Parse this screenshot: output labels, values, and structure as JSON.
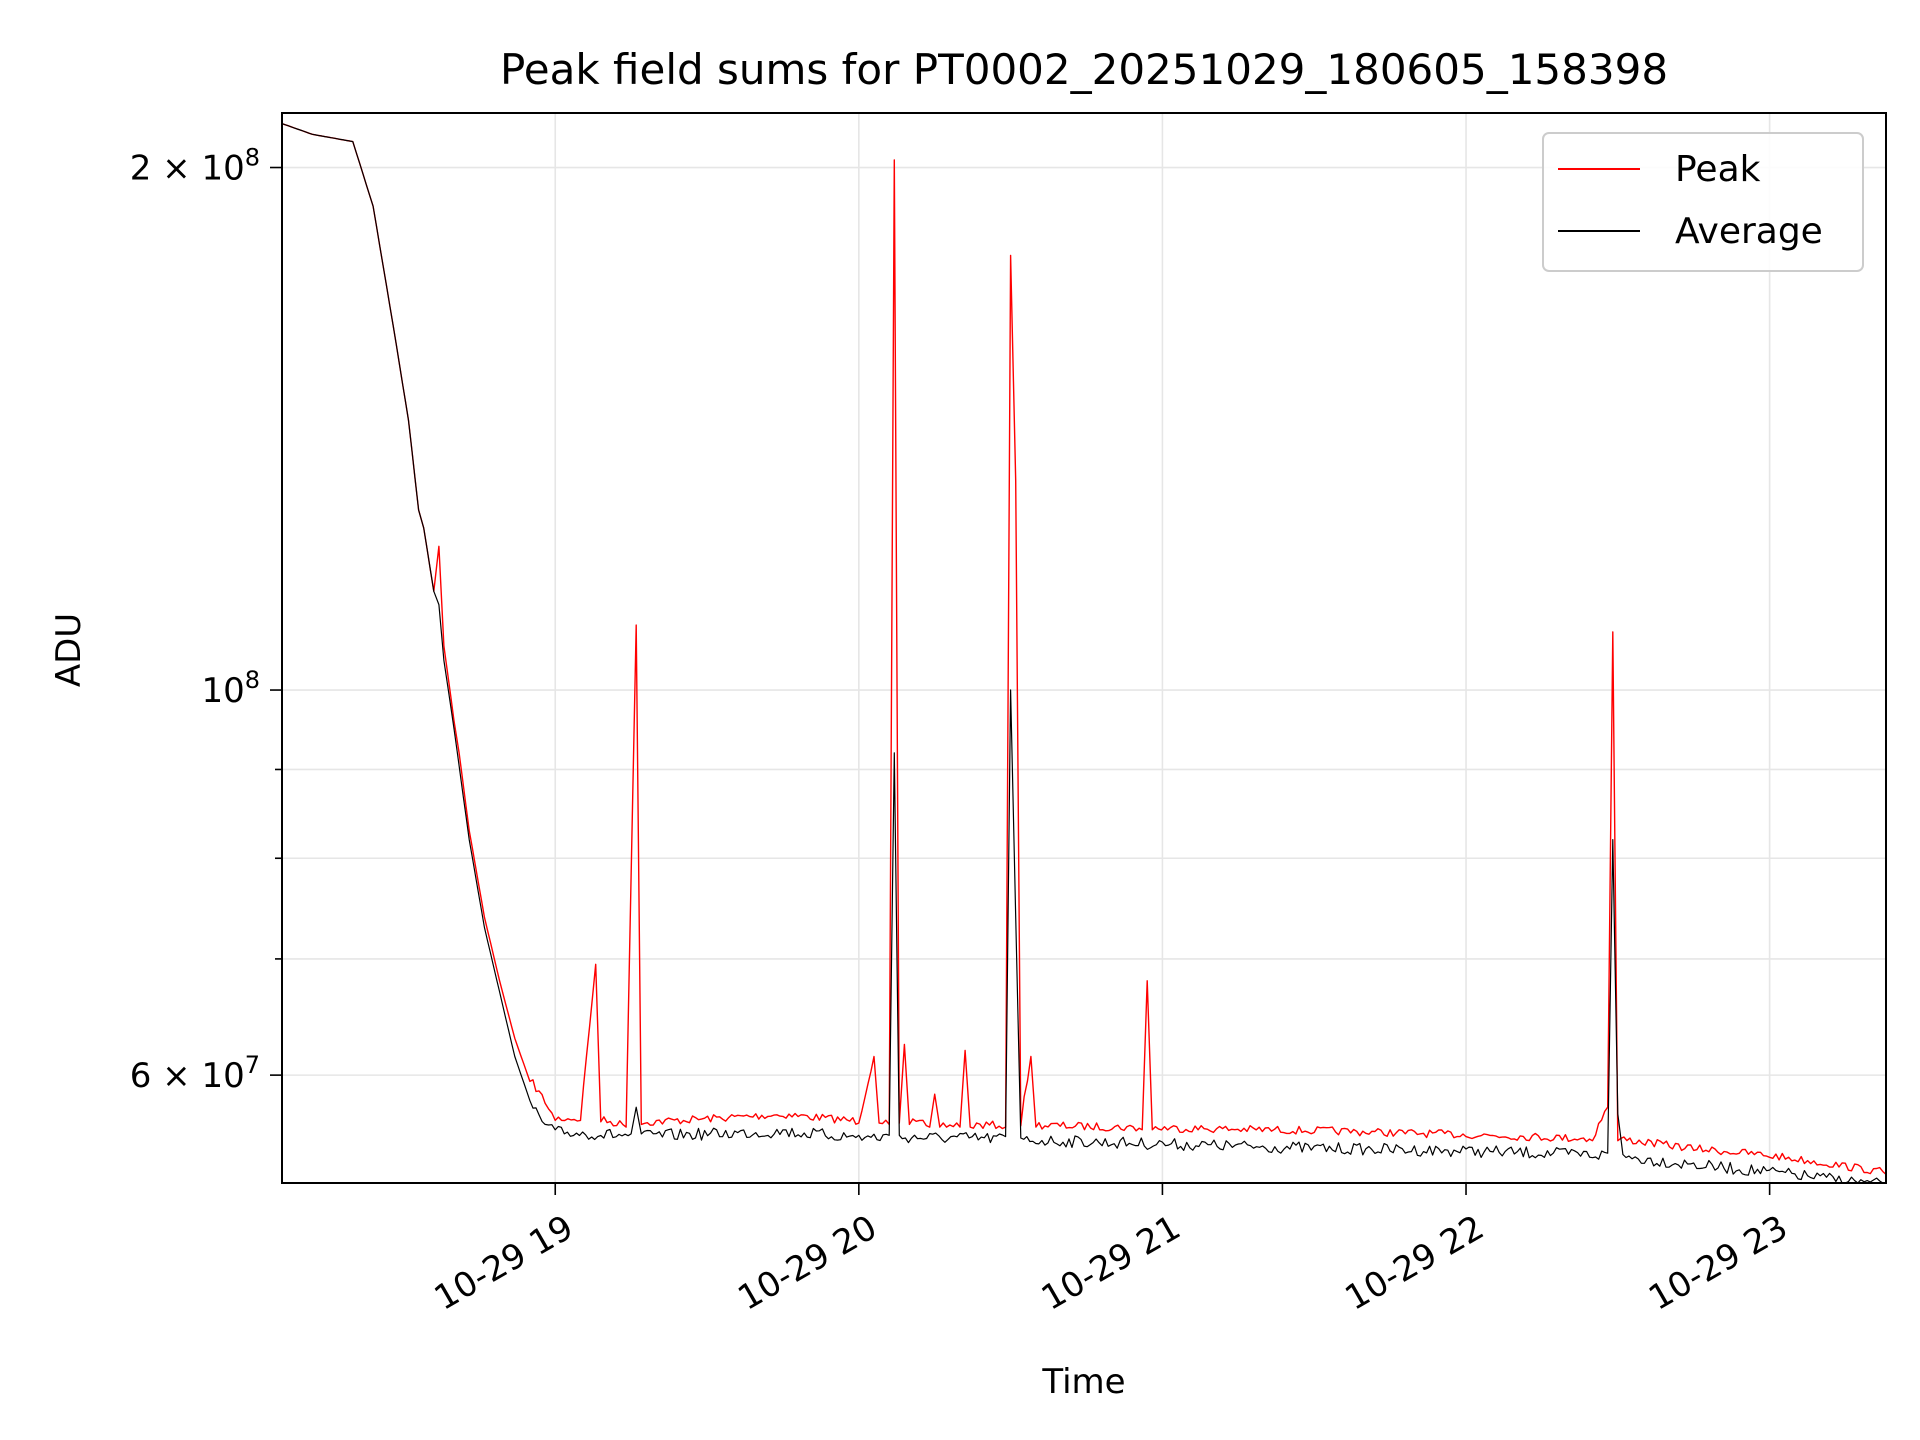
{
  "chart_data": {
    "type": "line",
    "title": "Peak field sums for PT0002_20251029_180605_158398",
    "xlabel": "Time",
    "ylabel": "ADU",
    "y_scale": "log",
    "x_range": [
      "2025-10-29 18:06",
      "2025-10-29 23:23"
    ],
    "ylim": [
      52000000,
      215000000
    ],
    "x_ticks": [
      {
        "label": "10-29 19",
        "t": "2025-10-29 19:00"
      },
      {
        "label": "10-29 20",
        "t": "2025-10-29 20:00"
      },
      {
        "label": "10-29 21",
        "t": "2025-10-29 21:00"
      },
      {
        "label": "10-29 22",
        "t": "2025-10-29 22:00"
      },
      {
        "label": "10-29 23",
        "t": "2025-10-29 23:00"
      }
    ],
    "y_ticks": [
      {
        "label_base": "2 × 10",
        "label_exp": "8",
        "value": 200000000
      },
      {
        "label_base": "10",
        "label_exp": "8",
        "value": 100000000
      },
      {
        "label_base": "6 × 10",
        "label_exp": "7",
        "value": 60000000
      }
    ],
    "y_minor_ticks": [
      70000000,
      80000000,
      90000000
    ],
    "grid": true,
    "legend": "top-right",
    "series": [
      {
        "name": "Peak",
        "color": "#ff0000",
        "points": [
          [
            "2025-10-29 18:06",
            212000000
          ],
          [
            "2025-10-29 18:12",
            209000000
          ],
          [
            "2025-10-29 18:20",
            207000000
          ],
          [
            "2025-10-29 18:24",
            190000000
          ],
          [
            "2025-10-29 18:28",
            162000000
          ],
          [
            "2025-10-29 18:31",
            143000000
          ],
          [
            "2025-10-29 18:33",
            127000000
          ],
          [
            "2025-10-29 18:34",
            124000000
          ],
          [
            "2025-10-29 18:36",
            114000000
          ],
          [
            "2025-10-29 18:37",
            121000000
          ],
          [
            "2025-10-29 18:38",
            106000000
          ],
          [
            "2025-10-29 18:40",
            96000000
          ],
          [
            "2025-10-29 18:41",
            92000000
          ],
          [
            "2025-10-29 18:43",
            83000000
          ],
          [
            "2025-10-29 18:46",
            74000000
          ],
          [
            "2025-10-29 18:49",
            68000000
          ],
          [
            "2025-10-29 18:52",
            63000000
          ],
          [
            "2025-10-29 18:55",
            59500000
          ],
          [
            "2025-10-29 18:58",
            57800000
          ],
          [
            "2025-10-29 19:00",
            56500000
          ],
          [
            "2025-10-29 19:05",
            56500000
          ],
          [
            "2025-10-29 19:08",
            69500000
          ],
          [
            "2025-10-29 19:09",
            56400000
          ],
          [
            "2025-10-29 19:14",
            56000000
          ],
          [
            "2025-10-29 19:16",
            109000000
          ],
          [
            "2025-10-29 19:17",
            56200000
          ],
          [
            "2025-10-29 19:45",
            56800000
          ],
          [
            "2025-10-29 20:00",
            56300000
          ],
          [
            "2025-10-29 20:03",
            61500000
          ],
          [
            "2025-10-29 20:04",
            56300000
          ],
          [
            "2025-10-29 20:06",
            56200000
          ],
          [
            "2025-10-29 20:07",
            202000000
          ],
          [
            "2025-10-29 20:08",
            56300000
          ],
          [
            "2025-10-29 20:09",
            62500000
          ],
          [
            "2025-10-29 20:10",
            56200000
          ],
          [
            "2025-10-29 20:14",
            56000000
          ],
          [
            "2025-10-29 20:15",
            58500000
          ],
          [
            "2025-10-29 20:16",
            56000000
          ],
          [
            "2025-10-29 20:20",
            56000000
          ],
          [
            "2025-10-29 20:21",
            62000000
          ],
          [
            "2025-10-29 20:22",
            56000000
          ],
          [
            "2025-10-29 20:29",
            56000000
          ],
          [
            "2025-10-29 20:30",
            178000000
          ],
          [
            "2025-10-29 20:31",
            132000000
          ],
          [
            "2025-10-29 20:32",
            56100000
          ],
          [
            "2025-10-29 20:34",
            61500000
          ],
          [
            "2025-10-29 20:35",
            56000000
          ],
          [
            "2025-10-29 20:56",
            55800000
          ],
          [
            "2025-10-29 20:57",
            68000000
          ],
          [
            "2025-10-29 20:58",
            55800000
          ],
          [
            "2025-10-29 21:30",
            55600000
          ],
          [
            "2025-10-29 22:00",
            55300000
          ],
          [
            "2025-10-29 22:25",
            55000000
          ],
          [
            "2025-10-29 22:28",
            57500000
          ],
          [
            "2025-10-29 22:29",
            108000000
          ],
          [
            "2025-10-29 22:30",
            55000000
          ],
          [
            "2025-10-29 22:45",
            54300000
          ],
          [
            "2025-10-29 23:00",
            53800000
          ],
          [
            "2025-10-29 23:10",
            53300000
          ],
          [
            "2025-10-29 23:23",
            52600000
          ]
        ]
      },
      {
        "name": "Average",
        "color": "#000000",
        "points": [
          [
            "2025-10-29 18:06",
            212000000
          ],
          [
            "2025-10-29 18:12",
            209000000
          ],
          [
            "2025-10-29 18:20",
            207000000
          ],
          [
            "2025-10-29 18:24",
            190000000
          ],
          [
            "2025-10-29 18:28",
            162000000
          ],
          [
            "2025-10-29 18:31",
            143000000
          ],
          [
            "2025-10-29 18:33",
            127000000
          ],
          [
            "2025-10-29 18:34",
            124000000
          ],
          [
            "2025-10-29 18:36",
            114000000
          ],
          [
            "2025-10-29 18:37",
            112000000
          ],
          [
            "2025-10-29 18:38",
            104000000
          ],
          [
            "2025-10-29 18:40",
            95000000
          ],
          [
            "2025-10-29 18:43",
            82000000
          ],
          [
            "2025-10-29 18:46",
            73000000
          ],
          [
            "2025-10-29 18:49",
            67000000
          ],
          [
            "2025-10-29 18:52",
            61500000
          ],
          [
            "2025-10-29 18:55",
            58000000
          ],
          [
            "2025-10-29 18:58",
            56200000
          ],
          [
            "2025-10-29 19:00",
            55800000
          ],
          [
            "2025-10-29 19:15",
            55500000
          ],
          [
            "2025-10-29 19:16",
            57500000
          ],
          [
            "2025-10-29 19:17",
            55500000
          ],
          [
            "2025-10-29 19:45",
            55800000
          ],
          [
            "2025-10-29 20:00",
            55400000
          ],
          [
            "2025-10-29 20:06",
            55400000
          ],
          [
            "2025-10-29 20:07",
            92000000
          ],
          [
            "2025-10-29 20:08",
            55400000
          ],
          [
            "2025-10-29 20:29",
            55300000
          ],
          [
            "2025-10-29 20:30",
            100000000
          ],
          [
            "2025-10-29 20:31",
            74000000
          ],
          [
            "2025-10-29 20:32",
            55200000
          ],
          [
            "2025-10-29 21:00",
            54900000
          ],
          [
            "2025-10-29 21:30",
            54600000
          ],
          [
            "2025-10-29 22:00",
            54400000
          ],
          [
            "2025-10-29 22:28",
            54100000
          ],
          [
            "2025-10-29 22:29",
            82000000
          ],
          [
            "2025-10-29 22:30",
            57000000
          ],
          [
            "2025-10-29 22:31",
            54000000
          ],
          [
            "2025-10-29 22:45",
            53400000
          ],
          [
            "2025-10-29 23:00",
            52900000
          ],
          [
            "2025-10-29 23:10",
            52500000
          ],
          [
            "2025-10-29 23:23",
            52000000
          ]
        ]
      }
    ]
  }
}
